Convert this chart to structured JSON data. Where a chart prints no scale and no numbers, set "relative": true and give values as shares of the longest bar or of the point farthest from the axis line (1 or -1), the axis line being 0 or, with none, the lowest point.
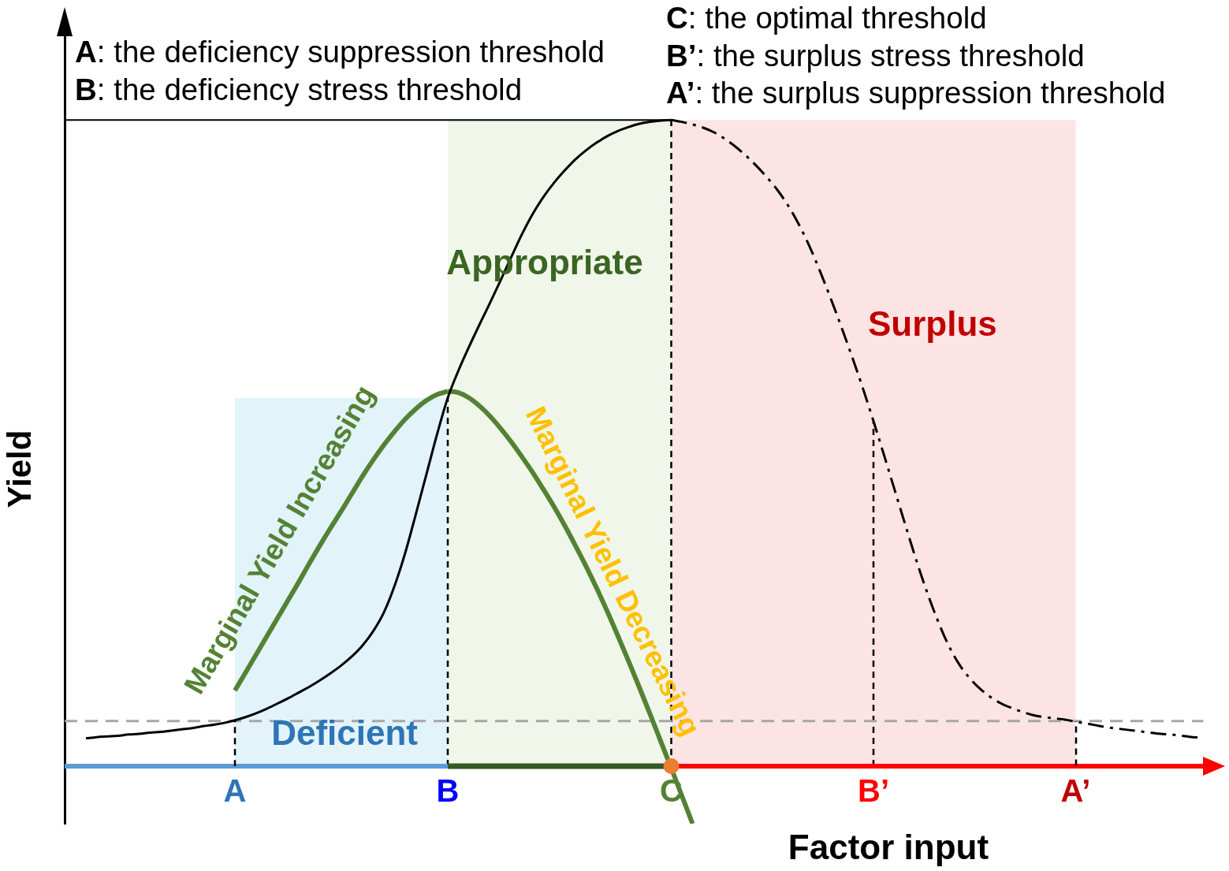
{
  "chart_data": {
    "type": "line",
    "relative": true,
    "xlabel": "Factor input",
    "ylabel": "Yield",
    "annotations": [
      "A: the deficiency suppression threshold",
      "B: the deficiency stress threshold",
      "C: the optimal threshold",
      "B’: the surplus stress threshold",
      "A’: the surplus suppression threshold"
    ],
    "categories": [
      null,
      null,
      null,
      null,
      null,
      null,
      null,
      null,
      null,
      null,
      null,
      null,
      null,
      null,
      null,
      null,
      "A",
      null,
      null,
      null,
      null,
      null,
      null,
      null,
      null,
      null,
      null,
      null,
      null,
      null,
      null,
      null,
      null,
      null,
      null,
      null,
      "B",
      null,
      null,
      null,
      null,
      null,
      null,
      null,
      null,
      null,
      null,
      null,
      null,
      null,
      null,
      null,
      null,
      null,
      null,
      null,
      null,
      "C",
      null,
      null,
      null,
      null,
      null,
      null,
      null,
      null,
      null,
      null,
      null,
      null,
      null,
      null,
      null,
      null,
      null,
      null,
      "B’",
      null,
      null,
      null,
      null,
      null,
      null,
      null,
      null,
      null,
      null,
      null,
      null,
      null,
      null,
      null,
      null,
      null,
      null,
      "A’",
      null,
      null,
      null,
      null,
      null,
      null,
      null,
      null,
      null,
      null,
      null,
      null
    ],
    "series": [
      {
        "color": "#000000",
        "line_style": "solid",
        "values": [
          null,
          null,
          0.043,
          0.045,
          0.046,
          0.047,
          0.049,
          0.05,
          0.052,
          0.053,
          0.055,
          0.057,
          0.059,
          0.062,
          0.064,
          0.067,
          0.071,
          0.076,
          0.082,
          0.089,
          0.097,
          0.105,
          0.114,
          0.123,
          0.133,
          0.144,
          0.156,
          0.17,
          0.187,
          0.209,
          0.238,
          0.279,
          0.33,
          0.39,
          0.452,
          0.514,
          0.57,
          0.612,
          0.649,
          0.684,
          0.718,
          0.753,
          0.789,
          0.824,
          0.855,
          0.881,
          0.903,
          0.922,
          0.939,
          0.953,
          0.965,
          0.975,
          0.983,
          0.989,
          0.994,
          0.997,
          0.999,
          1,
          null,
          null,
          null,
          null,
          null,
          null,
          null,
          null,
          null,
          null,
          null,
          null,
          null,
          null,
          null,
          null,
          null,
          null,
          null,
          null,
          null,
          null,
          null,
          null,
          null,
          null,
          null,
          null,
          null,
          null,
          null,
          null,
          null,
          null,
          null,
          null,
          null,
          null,
          null,
          null,
          null,
          null,
          null,
          null,
          null,
          null,
          null,
          null,
          null,
          null
        ]
      },
      {
        "color": "#000000",
        "line_style": "dashed",
        "values": [
          null,
          null,
          null,
          null,
          null,
          null,
          null,
          null,
          null,
          null,
          null,
          null,
          null,
          null,
          null,
          null,
          null,
          null,
          null,
          null,
          null,
          null,
          null,
          null,
          null,
          null,
          null,
          null,
          null,
          null,
          null,
          null,
          null,
          null,
          null,
          null,
          null,
          null,
          null,
          null,
          null,
          null,
          null,
          null,
          null,
          null,
          null,
          null,
          null,
          null,
          null,
          null,
          null,
          null,
          null,
          null,
          null,
          1,
          0.997,
          0.993,
          0.988,
          0.981,
          0.971,
          0.959,
          0.945,
          0.929,
          0.911,
          0.891,
          0.867,
          0.838,
          0.804,
          0.765,
          0.723,
          0.679,
          0.633,
          0.585,
          0.534,
          0.481,
          0.427,
          0.373,
          0.32,
          0.271,
          0.227,
          0.189,
          0.159,
          0.137,
          0.12,
          0.107,
          0.097,
          0.09,
          0.084,
          0.079,
          0.076,
          0.074,
          0.072,
          0.069,
          0.066,
          0.063,
          0.06,
          0.058,
          0.056,
          0.054,
          0.052,
          0.05,
          0.049,
          0.047,
          0.045,
          0.044
        ]
      },
      {
        "name": "Marginal Yield Increasing",
        "color": "#548235",
        "values": [
          null,
          null,
          null,
          null,
          null,
          null,
          null,
          null,
          null,
          null,
          null,
          null,
          null,
          null,
          null,
          null,
          0.117,
          0.145,
          0.173,
          0.201,
          0.229,
          0.257,
          0.285,
          0.314,
          0.342,
          0.369,
          0.395,
          0.422,
          0.449,
          0.474,
          0.497,
          0.518,
          0.537,
          0.553,
          0.566,
          0.575,
          0.58,
          null,
          null,
          null,
          null,
          null,
          null,
          null,
          null,
          null,
          null,
          null,
          null,
          null,
          null,
          null,
          null,
          null,
          null,
          null,
          null,
          null,
          null,
          null,
          null,
          null,
          null,
          null,
          null,
          null,
          null,
          null,
          null,
          null,
          null,
          null,
          null,
          null,
          null,
          null,
          null,
          null,
          null,
          null,
          null,
          null,
          null,
          null,
          null,
          null,
          null,
          null,
          null,
          null,
          null,
          null,
          null,
          null,
          null,
          null,
          null,
          null,
          null,
          null,
          null,
          null,
          null,
          null,
          null,
          null,
          null,
          null
        ]
      },
      {
        "name": "Marginal Yield Decreasing",
        "color": "#548235",
        "values": [
          null,
          null,
          null,
          null,
          null,
          null,
          null,
          null,
          null,
          null,
          null,
          null,
          null,
          null,
          null,
          null,
          null,
          null,
          null,
          null,
          null,
          null,
          null,
          null,
          null,
          null,
          null,
          null,
          null,
          null,
          null,
          null,
          null,
          null,
          null,
          null,
          0.58,
          0.578,
          0.57,
          0.557,
          0.541,
          0.522,
          0.501,
          0.478,
          0.454,
          0.428,
          0.401,
          0.372,
          0.341,
          0.309,
          0.275,
          0.239,
          0.201,
          0.162,
          0.122,
          0.081,
          0.039,
          -0.003,
          -0.046,
          -0.089,
          null,
          null,
          null,
          null,
          null,
          null,
          null,
          null,
          null,
          null,
          null,
          null,
          null,
          null,
          null,
          null,
          null,
          null,
          null,
          null,
          null,
          null,
          null,
          null,
          null,
          null,
          null,
          null,
          null,
          null,
          null,
          null,
          null,
          null,
          null,
          null,
          null,
          null,
          null,
          null,
          null,
          null,
          null,
          null,
          null,
          null,
          null,
          null
        ]
      },
      {
        "color": "#000000",
        "values": [
          1,
          1,
          1,
          1,
          1,
          1,
          1,
          1,
          1,
          1,
          1,
          1,
          1,
          1,
          1,
          1,
          1,
          1,
          1,
          1,
          1,
          1,
          1,
          1,
          1,
          1,
          1,
          1,
          1,
          1,
          1,
          1,
          1,
          1,
          1,
          1,
          1,
          1,
          1,
          1,
          1,
          1,
          1,
          1,
          1,
          1,
          1,
          1,
          1,
          1,
          1,
          1,
          1,
          1,
          1,
          1,
          1,
          1,
          null,
          null,
          null,
          null,
          null,
          null,
          null,
          null,
          null,
          null,
          null,
          null,
          null,
          null,
          null,
          null,
          null,
          null,
          null,
          null,
          null,
          null,
          null,
          null,
          null,
          null,
          null,
          null,
          null,
          null,
          null,
          null,
          null,
          null,
          null,
          null,
          null,
          null,
          null,
          null,
          null,
          null,
          null,
          null,
          null,
          null,
          null,
          null,
          null,
          null
        ]
      },
      {
        "color": "#5b9bd5",
        "values": [
          0,
          0,
          0,
          0,
          0,
          0,
          0,
          0,
          0,
          0,
          0,
          0,
          0,
          0,
          0,
          0,
          0,
          0,
          0,
          0,
          0,
          0,
          0,
          0,
          0,
          0,
          0,
          0,
          0,
          0,
          0,
          0,
          0,
          0,
          0,
          0,
          0,
          null,
          null,
          null,
          null,
          null,
          null,
          null,
          null,
          null,
          null,
          null,
          null,
          null,
          null,
          null,
          null,
          null,
          null,
          null,
          null,
          null,
          null,
          null,
          null,
          null,
          null,
          null,
          null,
          null,
          null,
          null,
          null,
          null,
          null,
          null,
          null,
          null,
          null,
          null,
          null,
          null,
          null,
          null,
          null,
          null,
          null,
          null,
          null,
          null,
          null,
          null,
          null,
          null,
          null,
          null,
          null,
          null,
          null,
          null,
          null,
          null,
          null,
          null,
          null,
          null,
          null,
          null,
          null,
          null,
          null,
          null
        ]
      },
      {
        "color": "#385723",
        "values": [
          null,
          null,
          null,
          null,
          null,
          null,
          null,
          null,
          null,
          null,
          null,
          null,
          null,
          null,
          null,
          null,
          null,
          null,
          null,
          null,
          null,
          null,
          null,
          null,
          null,
          null,
          null,
          null,
          null,
          null,
          null,
          null,
          null,
          null,
          null,
          null,
          0,
          0,
          0,
          0,
          0,
          0,
          0,
          0,
          0,
          0,
          0,
          0,
          0,
          0,
          0,
          0,
          0,
          0,
          0,
          0,
          0,
          0,
          null,
          null,
          null,
          null,
          null,
          null,
          null,
          null,
          null,
          null,
          null,
          null,
          null,
          null,
          null,
          null,
          null,
          null,
          null,
          null,
          null,
          null,
          null,
          null,
          null,
          null,
          null,
          null,
          null,
          null,
          null,
          null,
          null,
          null,
          null,
          null,
          null,
          null,
          null,
          null,
          null,
          null,
          null,
          null,
          null,
          null,
          null,
          null,
          null,
          null
        ]
      },
      {
        "color": "#ff0000",
        "values": [
          null,
          null,
          null,
          null,
          null,
          null,
          null,
          null,
          null,
          null,
          null,
          null,
          null,
          null,
          null,
          null,
          null,
          null,
          null,
          null,
          null,
          null,
          null,
          null,
          null,
          null,
          null,
          null,
          null,
          null,
          null,
          null,
          null,
          null,
          null,
          null,
          null,
          null,
          null,
          null,
          null,
          null,
          null,
          null,
          null,
          null,
          null,
          null,
          null,
          null,
          null,
          null,
          null,
          null,
          null,
          null,
          null,
          0,
          0,
          0,
          0,
          0,
          0,
          0,
          0,
          0,
          0,
          0,
          0,
          0,
          0,
          0,
          0,
          0,
          0,
          0,
          0,
          0,
          0,
          0,
          0,
          0,
          0,
          0,
          0,
          0,
          0,
          0,
          0,
          0,
          0,
          0,
          0,
          0,
          0,
          0,
          0,
          0,
          0,
          0,
          0,
          0,
          0,
          0,
          0,
          0,
          0,
          0
        ]
      },
      {
        "type": "scatter",
        "x": [
          "C"
        ],
        "values": [
          0
        ],
        "color": "#ed7d31",
        "marker": "circle"
      }
    ],
    "ref_lines": [
      {
        "axis": "x",
        "value": "B",
        "color": "#000000",
        "line_style": "dashed"
      },
      {
        "axis": "x",
        "value": "C",
        "color": "#000000",
        "line_style": "dashed"
      },
      {
        "axis": "x",
        "value": "B’",
        "color": "#000000",
        "line_style": "dashed"
      },
      {
        "axis": "y",
        "value": 0.07,
        "color": "#a6a6a6",
        "line_style": "dashed"
      }
    ],
    "bands": [
      {
        "axis": "x",
        "from": "A",
        "to": "B",
        "label": "Deficient",
        "color": "#e2f3fa"
      },
      {
        "axis": "x",
        "from": "B",
        "to": "C",
        "label": "Appropriate",
        "color": "#f0f6ea"
      },
      {
        "axis": "x",
        "from": "C",
        "to": "A’",
        "label": "Surplus",
        "color": "#fce4e4"
      }
    ]
  }
}
